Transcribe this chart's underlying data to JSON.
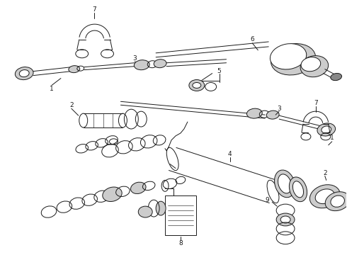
{
  "background_color": "#ffffff",
  "line_color": "#1a1a1a",
  "figure_width": 4.9,
  "figure_height": 3.6,
  "dpi": 100,
  "lw": 0.7,
  "fs": 6.5,
  "gray1": "#aaaaaa",
  "gray2": "#cccccc",
  "gray3": "#888888"
}
